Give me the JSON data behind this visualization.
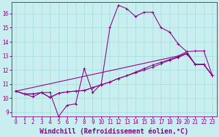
{
  "xlabel": "Windchill (Refroidissement éolien,°C)",
  "bg_color": "#c8eef0",
  "grid_color": "#aadddf",
  "line_color": "#880088",
  "xlim": [
    -0.5,
    23.5
  ],
  "ylim": [
    8.7,
    16.8
  ],
  "xticks": [
    0,
    1,
    2,
    3,
    4,
    5,
    6,
    7,
    8,
    9,
    10,
    11,
    12,
    13,
    14,
    15,
    16,
    17,
    18,
    19,
    20,
    21,
    22,
    23
  ],
  "yticks": [
    9,
    10,
    11,
    12,
    13,
    14,
    15,
    16
  ],
  "line1_x": [
    0,
    1,
    2,
    3,
    4,
    5,
    6,
    7,
    8,
    9,
    10,
    11,
    12,
    13,
    14,
    15,
    16,
    17,
    18,
    19,
    20,
    21,
    22,
    23
  ],
  "line1_y": [
    10.5,
    10.3,
    10.1,
    10.4,
    10.4,
    8.7,
    9.5,
    9.6,
    12.1,
    10.4,
    11.0,
    15.0,
    16.6,
    16.35,
    15.8,
    16.1,
    16.1,
    15.0,
    14.7,
    13.85,
    13.3,
    12.4,
    12.4,
    11.6
  ],
  "line2_x": [
    0,
    1,
    2,
    3,
    4,
    5,
    6,
    7,
    8,
    9,
    10,
    11,
    12,
    13,
    14,
    15,
    16,
    17,
    18,
    19,
    20,
    21,
    22,
    23
  ],
  "line2_y": [
    10.5,
    10.3,
    10.3,
    10.4,
    10.05,
    10.35,
    10.45,
    10.5,
    10.55,
    10.75,
    10.95,
    11.15,
    11.4,
    11.6,
    11.8,
    12.0,
    12.2,
    12.45,
    12.7,
    12.9,
    13.15,
    12.4,
    12.4,
    11.6
  ],
  "line3_x": [
    0,
    1,
    2,
    3,
    4,
    5,
    6,
    7,
    8,
    9,
    10,
    11,
    12,
    13,
    14,
    15,
    16,
    17,
    18,
    19,
    20,
    21,
    22,
    23
  ],
  "line3_y": [
    10.5,
    10.3,
    10.3,
    10.4,
    10.05,
    10.35,
    10.45,
    10.5,
    10.55,
    10.75,
    10.95,
    11.15,
    11.4,
    11.6,
    11.85,
    12.1,
    12.35,
    12.55,
    12.75,
    12.95,
    13.2,
    12.4,
    12.4,
    11.6
  ],
  "line4_x": [
    0,
    19,
    20,
    21,
    22,
    23
  ],
  "line4_y": [
    10.5,
    13.0,
    13.3,
    13.35,
    13.35,
    11.6
  ],
  "marker": "+",
  "markersize": 3,
  "linewidth": 0.8,
  "tick_fontsize": 5.5,
  "label_fontsize": 7,
  "tick_color": "#880088",
  "axis_color": "#880088"
}
